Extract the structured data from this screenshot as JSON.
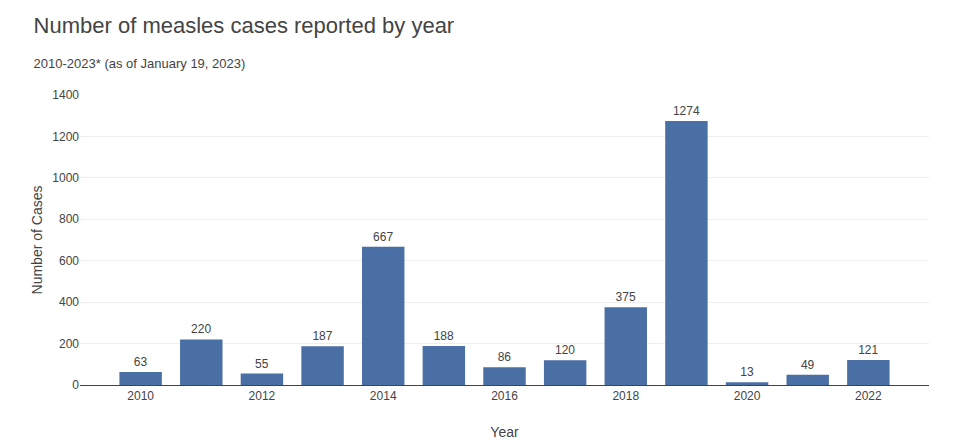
{
  "chart_data": {
    "type": "bar",
    "title": "Number of measles cases reported by year",
    "subtitle": "2010-2023* (as of January 19, 2023)",
    "xlabel": "Year",
    "ylabel": "Number of Cases",
    "x": [
      2010,
      2011,
      2012,
      2013,
      2014,
      2015,
      2016,
      2017,
      2018,
      2019,
      2020,
      2021,
      2022
    ],
    "values": [
      63,
      220,
      55,
      187,
      667,
      188,
      86,
      120,
      375,
      1274,
      13,
      49,
      121
    ],
    "color": "#4a6fa5",
    "xlim": [
      2009,
      2023
    ],
    "xticks": [
      2010,
      2012,
      2014,
      2016,
      2018,
      2020,
      2022
    ],
    "ylim": [
      0,
      1400
    ],
    "yticks": [
      0,
      200,
      400,
      600,
      800,
      1000,
      1200,
      1400
    ],
    "grid": true,
    "data_labels": true
  }
}
